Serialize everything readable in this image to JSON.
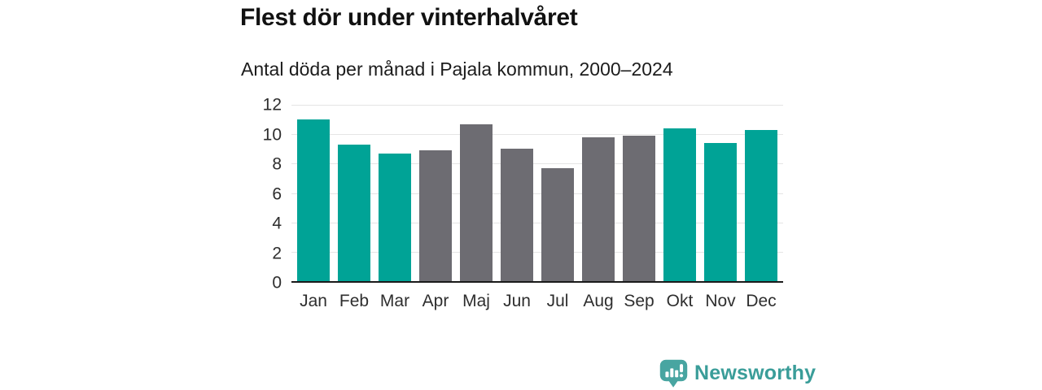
{
  "header": {
    "title": "Flest dör under vinterhalvåret",
    "subtitle": "Antal döda per månad i Pajala kommun, 2000–2024"
  },
  "chart_data": {
    "type": "bar",
    "title": "Flest dör under vinterhalvåret",
    "subtitle": "Antal döda per månad i Pajala kommun, 2000–2024",
    "categories": [
      "Jan",
      "Feb",
      "Mar",
      "Apr",
      "Maj",
      "Jun",
      "Jul",
      "Aug",
      "Sep",
      "Okt",
      "Nov",
      "Dec"
    ],
    "values": [
      11.0,
      9.3,
      8.7,
      8.9,
      10.7,
      9.0,
      7.7,
      9.8,
      9.9,
      10.4,
      9.4,
      10.3
    ],
    "bar_color_keys": [
      "teal",
      "teal",
      "teal",
      "gray",
      "gray",
      "gray",
      "gray",
      "gray",
      "gray",
      "teal",
      "teal",
      "teal"
    ],
    "colors": {
      "teal": "#00a396",
      "gray": "#6d6c72"
    },
    "xlabel": "",
    "ylabel": "",
    "ylim": [
      0,
      12
    ],
    "yticks": [
      0,
      2,
      4,
      6,
      8,
      10,
      12
    ],
    "grid": true,
    "gridline_color": "#e5e5e5",
    "axis_line_color": "#1a1a1a",
    "legend": "none"
  },
  "footer": {
    "brand": "Newsworthy",
    "logo_icon": "bar-chart-speech-bubble-icon",
    "brand_color": "#3a9d99"
  }
}
